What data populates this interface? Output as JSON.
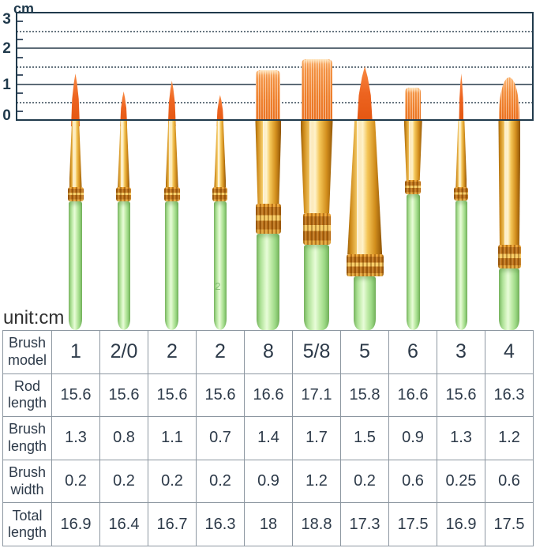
{
  "ruler": {
    "unit_label": "cm",
    "axis_numbers": [
      "3",
      "2",
      "1",
      "0"
    ],
    "max_cm": 3,
    "solid_lines_cm": [
      1,
      2
    ],
    "dashed_lines_cm": [
      0.5,
      1.5,
      2.5
    ]
  },
  "unit_note": "unit:cm",
  "table": {
    "row_headers": [
      "Brush model",
      "Rod length",
      "Brush length",
      "Brush width",
      "Total length"
    ],
    "brush_models": [
      "1",
      "2/0",
      "2",
      "2",
      "8",
      "5/8",
      "5",
      "6",
      "3",
      "4"
    ],
    "rod_length": [
      "15.6",
      "15.6",
      "15.6",
      "15.6",
      "16.6",
      "17.1",
      "15.8",
      "16.6",
      "15.6",
      "16.3"
    ],
    "brush_length": [
      "1.3",
      "0.8",
      "1.1",
      "0.7",
      "1.4",
      "1.7",
      "1.5",
      "0.9",
      "1.3",
      "1.2"
    ],
    "brush_width": [
      "0.2",
      "0.2",
      "0.2",
      "0.2",
      "0.9",
      "1.2",
      "0.2",
      "0.6",
      "0.25",
      "0.6"
    ],
    "total_length": [
      "16.9",
      "16.4",
      "16.7",
      "16.3",
      "18",
      "18.8",
      "17.3",
      "17.5",
      "16.9",
      "17.5"
    ]
  },
  "brushes": [
    {
      "model": "1",
      "type": "round-pointed",
      "length_cm": 1.3,
      "handle_mark": ""
    },
    {
      "model": "2/0",
      "type": "round-pointed",
      "length_cm": 0.8,
      "handle_mark": ""
    },
    {
      "model": "2",
      "type": "round-pointed",
      "length_cm": 1.1,
      "handle_mark": ""
    },
    {
      "model": "2",
      "type": "round-pointed",
      "length_cm": 0.7,
      "handle_mark": "2"
    },
    {
      "model": "8",
      "type": "flat-wash",
      "length_cm": 1.4,
      "handle_mark": ""
    },
    {
      "model": "5/8",
      "type": "flat-wash",
      "length_cm": 1.7,
      "handle_mark": ""
    },
    {
      "model": "5",
      "type": "round-pointed-large",
      "length_cm": 1.5,
      "handle_mark": ""
    },
    {
      "model": "6",
      "type": "flat-small",
      "length_cm": 0.9,
      "handle_mark": ""
    },
    {
      "model": "3",
      "type": "liner",
      "length_cm": 1.3,
      "handle_mark": ""
    },
    {
      "model": "4",
      "type": "filbert",
      "length_cm": 1.2,
      "handle_mark": ""
    }
  ],
  "colors": {
    "navy": "#203a4c",
    "grid_gray": "#5d6b77",
    "table_border": "#8d97a1",
    "table_text": "#2d3a49",
    "handle_green": "#a9df92",
    "ferrule_gold": "#f4c658",
    "bristle_orange": "#ee7b27"
  }
}
